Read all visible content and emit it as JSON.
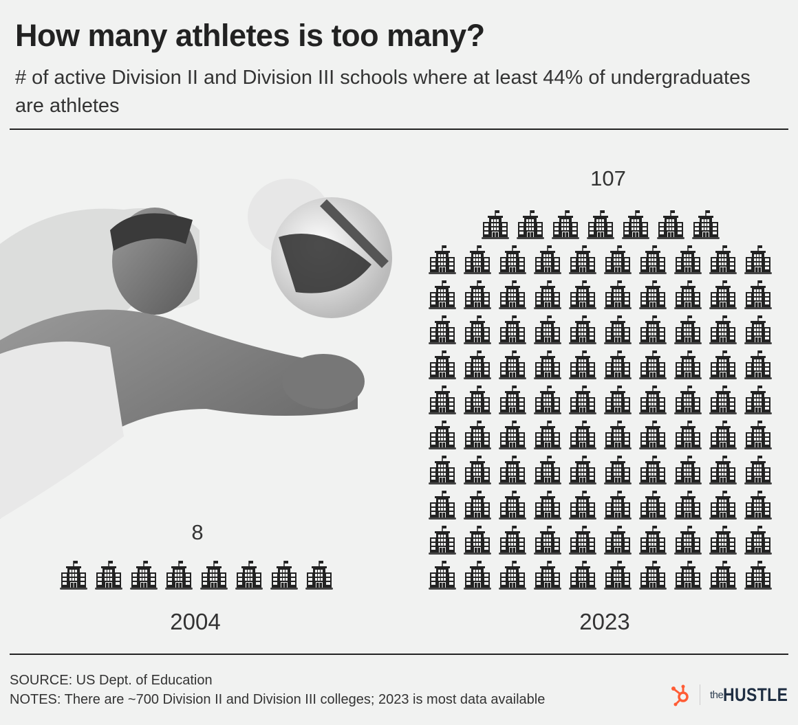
{
  "header": {
    "title": "How many athletes is too many?",
    "subtitle": "# of active Division II and Division III schools where at least 44% of undergraduates are athletes"
  },
  "chart_data": {
    "type": "pictogram",
    "title": "How many athletes is too many?",
    "unit_icon": "school-building-icon",
    "unit_value": 1,
    "categories": [
      "2004",
      "2023"
    ],
    "values": [
      8,
      107
    ],
    "data_labels": [
      "8",
      "107"
    ]
  },
  "footer": {
    "source": "SOURCE: US Dept. of Education",
    "notes": "NOTES: There are ~700 Division II and Division III colleges; 2023 is most data available"
  },
  "brand": {
    "the": "the",
    "name": "HUSTLE",
    "accent": "#ff5c35",
    "text_color": "#1f2e42"
  }
}
